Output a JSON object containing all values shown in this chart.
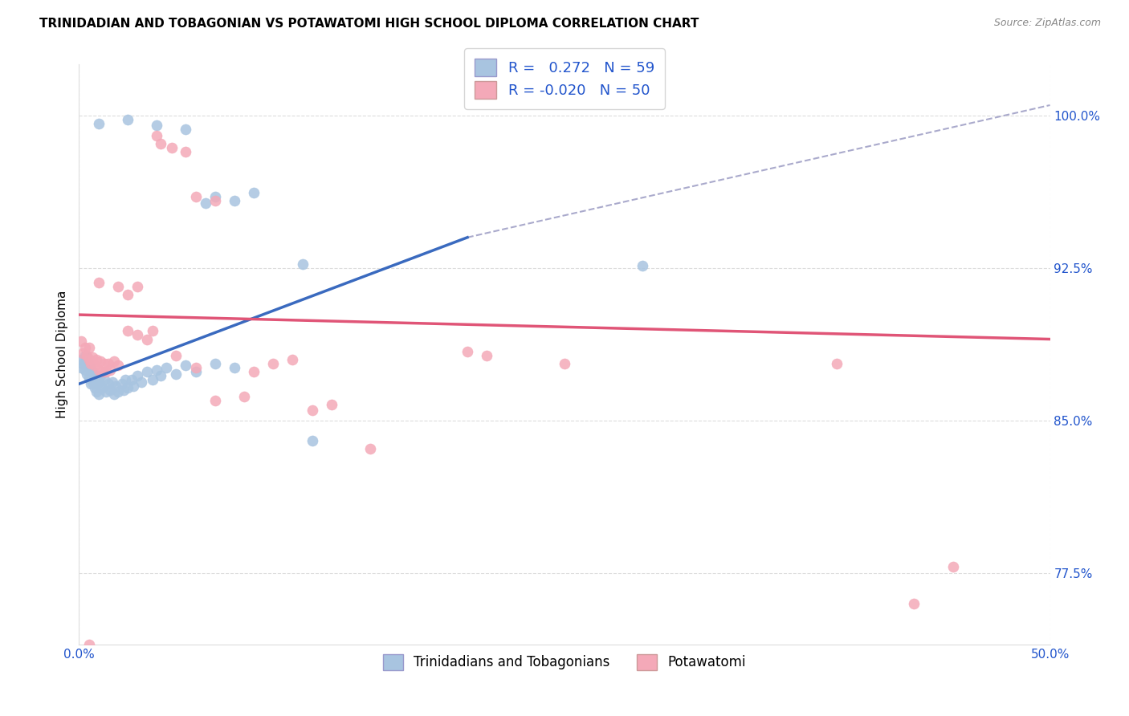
{
  "title": "TRINIDADIAN AND TOBAGONIAN VS POTAWATOMI HIGH SCHOOL DIPLOMA CORRELATION CHART",
  "source": "Source: ZipAtlas.com",
  "ylabel": "High School Diploma",
  "x_min": 0.0,
  "x_max": 0.5,
  "y_min": 0.74,
  "y_max": 1.025,
  "y_ticks": [
    0.775,
    0.85,
    0.925,
    1.0
  ],
  "y_tick_labels": [
    "77.5%",
    "85.0%",
    "92.5%",
    "100.0%"
  ],
  "x_ticks": [
    0.0,
    0.5
  ],
  "x_tick_labels": [
    "0.0%",
    "50.0%"
  ],
  "r_blue": 0.272,
  "n_blue": 59,
  "r_pink": -0.02,
  "n_pink": 50,
  "blue_color": "#a8c4e0",
  "pink_color": "#f4a9b8",
  "trendline_blue": "#3a6abf",
  "trendline_pink": "#e05577",
  "trendline_dashed": "#aaaacc",
  "legend_r_color": "#2255cc",
  "blue_line_x": [
    0.0,
    0.2
  ],
  "blue_line_y": [
    0.868,
    0.94
  ],
  "pink_line_x": [
    0.0,
    0.5
  ],
  "pink_line_y": [
    0.902,
    0.89
  ],
  "dashed_line_x": [
    0.2,
    0.5
  ],
  "dashed_line_y": [
    0.94,
    1.005
  ],
  "blue_scatter": [
    [
      0.001,
      0.88
    ],
    [
      0.001,
      0.876
    ],
    [
      0.002,
      0.878
    ],
    [
      0.003,
      0.882
    ],
    [
      0.003,
      0.875
    ],
    [
      0.004,
      0.88
    ],
    [
      0.004,
      0.873
    ],
    [
      0.005,
      0.877
    ],
    [
      0.005,
      0.871
    ],
    [
      0.006,
      0.875
    ],
    [
      0.006,
      0.868
    ],
    [
      0.007,
      0.874
    ],
    [
      0.007,
      0.869
    ],
    [
      0.008,
      0.872
    ],
    [
      0.008,
      0.866
    ],
    [
      0.009,
      0.87
    ],
    [
      0.009,
      0.864
    ],
    [
      0.01,
      0.869
    ],
    [
      0.01,
      0.863
    ],
    [
      0.011,
      0.867
    ],
    [
      0.011,
      0.872
    ],
    [
      0.012,
      0.866
    ],
    [
      0.013,
      0.87
    ],
    [
      0.014,
      0.864
    ],
    [
      0.015,
      0.868
    ],
    [
      0.016,
      0.865
    ],
    [
      0.017,
      0.869
    ],
    [
      0.018,
      0.863
    ],
    [
      0.019,
      0.867
    ],
    [
      0.02,
      0.864
    ],
    [
      0.022,
      0.868
    ],
    [
      0.023,
      0.865
    ],
    [
      0.024,
      0.87
    ],
    [
      0.025,
      0.866
    ],
    [
      0.027,
      0.87
    ],
    [
      0.028,
      0.867
    ],
    [
      0.03,
      0.872
    ],
    [
      0.032,
      0.869
    ],
    [
      0.035,
      0.874
    ],
    [
      0.038,
      0.87
    ],
    [
      0.04,
      0.875
    ],
    [
      0.042,
      0.872
    ],
    [
      0.045,
      0.876
    ],
    [
      0.05,
      0.873
    ],
    [
      0.055,
      0.877
    ],
    [
      0.06,
      0.874
    ],
    [
      0.07,
      0.878
    ],
    [
      0.08,
      0.876
    ],
    [
      0.01,
      0.996
    ],
    [
      0.025,
      0.998
    ],
    [
      0.04,
      0.995
    ],
    [
      0.055,
      0.993
    ],
    [
      0.065,
      0.957
    ],
    [
      0.07,
      0.96
    ],
    [
      0.08,
      0.958
    ],
    [
      0.09,
      0.962
    ],
    [
      0.115,
      0.927
    ],
    [
      0.12,
      0.84
    ],
    [
      0.29,
      0.926
    ]
  ],
  "pink_scatter": [
    [
      0.001,
      0.889
    ],
    [
      0.002,
      0.883
    ],
    [
      0.003,
      0.886
    ],
    [
      0.004,
      0.882
    ],
    [
      0.005,
      0.886
    ],
    [
      0.006,
      0.878
    ],
    [
      0.007,
      0.881
    ],
    [
      0.008,
      0.877
    ],
    [
      0.009,
      0.88
    ],
    [
      0.01,
      0.875
    ],
    [
      0.011,
      0.879
    ],
    [
      0.012,
      0.874
    ],
    [
      0.013,
      0.878
    ],
    [
      0.014,
      0.874
    ],
    [
      0.015,
      0.878
    ],
    [
      0.016,
      0.875
    ],
    [
      0.018,
      0.879
    ],
    [
      0.02,
      0.877
    ],
    [
      0.025,
      0.894
    ],
    [
      0.03,
      0.892
    ],
    [
      0.035,
      0.89
    ],
    [
      0.038,
      0.894
    ],
    [
      0.04,
      0.99
    ],
    [
      0.042,
      0.986
    ],
    [
      0.048,
      0.984
    ],
    [
      0.055,
      0.982
    ],
    [
      0.06,
      0.96
    ],
    [
      0.07,
      0.958
    ],
    [
      0.01,
      0.918
    ],
    [
      0.02,
      0.916
    ],
    [
      0.025,
      0.912
    ],
    [
      0.03,
      0.916
    ],
    [
      0.05,
      0.882
    ],
    [
      0.06,
      0.876
    ],
    [
      0.07,
      0.86
    ],
    [
      0.085,
      0.862
    ],
    [
      0.09,
      0.874
    ],
    [
      0.1,
      0.878
    ],
    [
      0.11,
      0.88
    ],
    [
      0.12,
      0.855
    ],
    [
      0.13,
      0.858
    ],
    [
      0.15,
      0.836
    ],
    [
      0.2,
      0.884
    ],
    [
      0.21,
      0.882
    ],
    [
      0.25,
      0.878
    ],
    [
      0.39,
      0.878
    ],
    [
      0.43,
      0.76
    ],
    [
      0.005,
      0.74
    ],
    [
      0.45,
      0.778
    ],
    [
      0.005,
      0.88
    ]
  ],
  "background_color": "#ffffff",
  "grid_color": "#dddddd"
}
